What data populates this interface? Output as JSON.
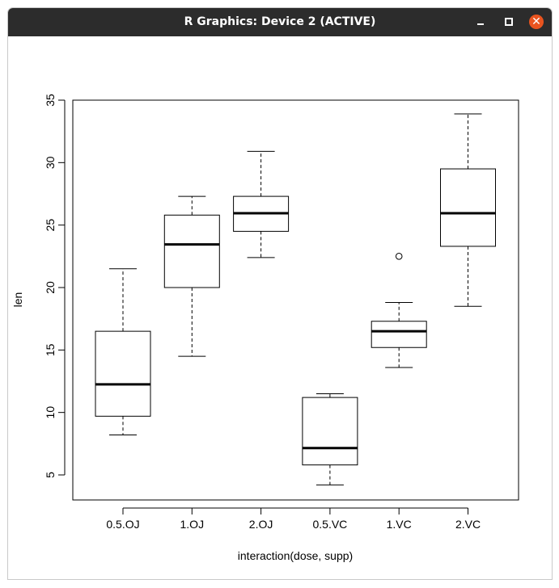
{
  "window": {
    "title": "R Graphics: Device 2 (ACTIVE)",
    "buttons": {
      "minimize_icon": "minimize-icon",
      "maximize_icon": "maximize-icon",
      "close_icon": "close-icon",
      "close_symbol": "✕"
    },
    "close_color": "#e9541f",
    "titlebar_color": "#2c2c2c"
  },
  "chart_data": {
    "type": "boxplot",
    "title": "",
    "xlabel": "interaction(dose, supp)",
    "ylabel": "len",
    "ylim": [
      3,
      35
    ],
    "y_ticks": [
      5,
      10,
      15,
      20,
      25,
      30,
      35
    ],
    "categories": [
      "0.5.OJ",
      "1.OJ",
      "2.OJ",
      "0.5.VC",
      "1.VC",
      "2.VC"
    ],
    "boxes": [
      {
        "category": "0.5.OJ",
        "whisker_low": 8.2,
        "q1": 9.7,
        "median": 12.25,
        "q3": 16.5,
        "whisker_high": 21.5,
        "outliers": []
      },
      {
        "category": "1.OJ",
        "whisker_low": 14.5,
        "q1": 20.0,
        "median": 23.45,
        "q3": 25.8,
        "whisker_high": 27.3,
        "outliers": []
      },
      {
        "category": "2.OJ",
        "whisker_low": 22.4,
        "q1": 24.5,
        "median": 25.95,
        "q3": 27.3,
        "whisker_high": 30.9,
        "outliers": []
      },
      {
        "category": "0.5.VC",
        "whisker_low": 4.2,
        "q1": 5.8,
        "median": 7.15,
        "q3": 11.2,
        "whisker_high": 11.5,
        "outliers": []
      },
      {
        "category": "1.VC",
        "whisker_low": 13.6,
        "q1": 15.2,
        "median": 16.5,
        "q3": 17.3,
        "whisker_high": 18.8,
        "outliers": [
          22.5
        ]
      },
      {
        "category": "2.VC",
        "whisker_low": 18.5,
        "q1": 23.3,
        "median": 25.95,
        "q3": 29.5,
        "whisker_high": 33.9,
        "outliers": []
      }
    ],
    "grid": false,
    "legend": "none"
  }
}
